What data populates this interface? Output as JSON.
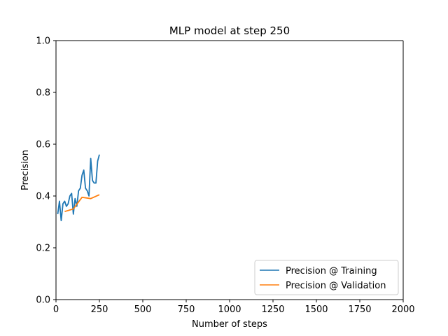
{
  "chart_data": {
    "type": "line",
    "title": "MLP model at step 250",
    "xlabel": "Number of steps",
    "ylabel": "Precision",
    "xlim": [
      0,
      2000
    ],
    "ylim": [
      0,
      1.0
    ],
    "x_ticks": [
      0,
      250,
      500,
      750,
      1000,
      1250,
      1500,
      1750,
      2000
    ],
    "x_tick_labels": [
      "0",
      "250",
      "500",
      "750",
      "1000",
      "1250",
      "1500",
      "1750",
      "2000"
    ],
    "y_ticks": [
      0.0,
      0.2,
      0.4,
      0.6,
      0.8,
      1.0
    ],
    "y_tick_labels": [
      "0.0",
      "0.2",
      "0.4",
      "0.6",
      "0.8",
      "1.0"
    ],
    "grid": false,
    "legend_position": "lower-right",
    "series": [
      {
        "name": "Precision @ Training",
        "color": "#1f77b4",
        "x": [
          10,
          20,
          30,
          40,
          50,
          60,
          70,
          80,
          90,
          100,
          110,
          120,
          130,
          140,
          150,
          160,
          170,
          180,
          190,
          200,
          210,
          220,
          230,
          240,
          250
        ],
        "y": [
          0.33,
          0.38,
          0.305,
          0.37,
          0.38,
          0.36,
          0.37,
          0.4,
          0.41,
          0.33,
          0.39,
          0.36,
          0.42,
          0.43,
          0.48,
          0.5,
          0.43,
          0.42,
          0.4,
          0.545,
          0.46,
          0.45,
          0.45,
          0.535,
          0.56
        ]
      },
      {
        "name": "Precision @ Validation",
        "color": "#ff7f0e",
        "x": [
          50,
          100,
          150,
          200,
          250
        ],
        "y": [
          0.34,
          0.35,
          0.395,
          0.39,
          0.405
        ]
      }
    ]
  }
}
